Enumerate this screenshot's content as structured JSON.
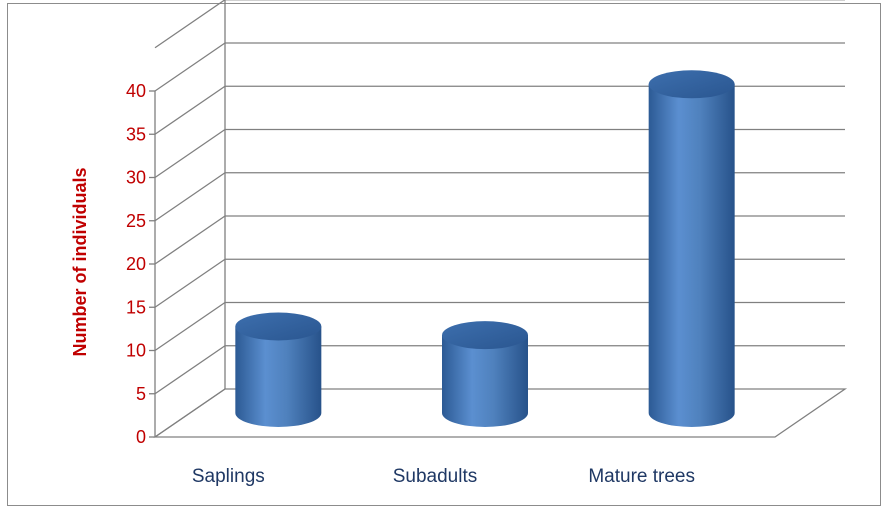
{
  "chart_data": {
    "type": "bar",
    "style": "3d-cylinder",
    "categories": [
      "Saplings",
      "Subadults",
      "Mature trees"
    ],
    "values": [
      10,
      9,
      38
    ],
    "title": "",
    "xlabel": "",
    "ylabel": "Number of individuals",
    "ylim": [
      0,
      40
    ],
    "yticks": [
      0,
      5,
      10,
      15,
      20,
      25,
      30,
      35,
      40
    ],
    "grid": true,
    "legend": "none"
  },
  "colors": {
    "bar": "#4f81bd",
    "bar_dark": "#2e5a8e",
    "bar_light": "#6a9ad6",
    "axis_text": "#c00000",
    "category_text": "#1f3864",
    "gridline": "#808080"
  }
}
